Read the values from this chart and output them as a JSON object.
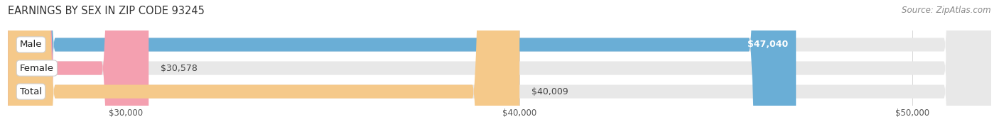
{
  "title": "EARNINGS BY SEX IN ZIP CODE 93245",
  "source": "Source: ZipAtlas.com",
  "categories": [
    "Male",
    "Female",
    "Total"
  ],
  "values": [
    47040,
    30578,
    40009
  ],
  "bar_colors": [
    "#6aaed6",
    "#f4a0b0",
    "#f5c98a"
  ],
  "value_labels": [
    "$47,040",
    "$30,578",
    "$40,009"
  ],
  "value_label_inside": [
    true,
    false,
    false
  ],
  "xlim": [
    27000,
    52000
  ],
  "xmin": 27000,
  "xmax": 52000,
  "xticks": [
    30000,
    40000,
    50000
  ],
  "xtick_labels": [
    "$30,000",
    "$40,000",
    "$50,000"
  ],
  "bar_height": 0.58,
  "bar_track_color": "#e8e8e8",
  "title_fontsize": 10.5,
  "source_fontsize": 8.5,
  "tick_fontsize": 8.5,
  "cat_fontsize": 9.5,
  "value_fontsize": 9
}
